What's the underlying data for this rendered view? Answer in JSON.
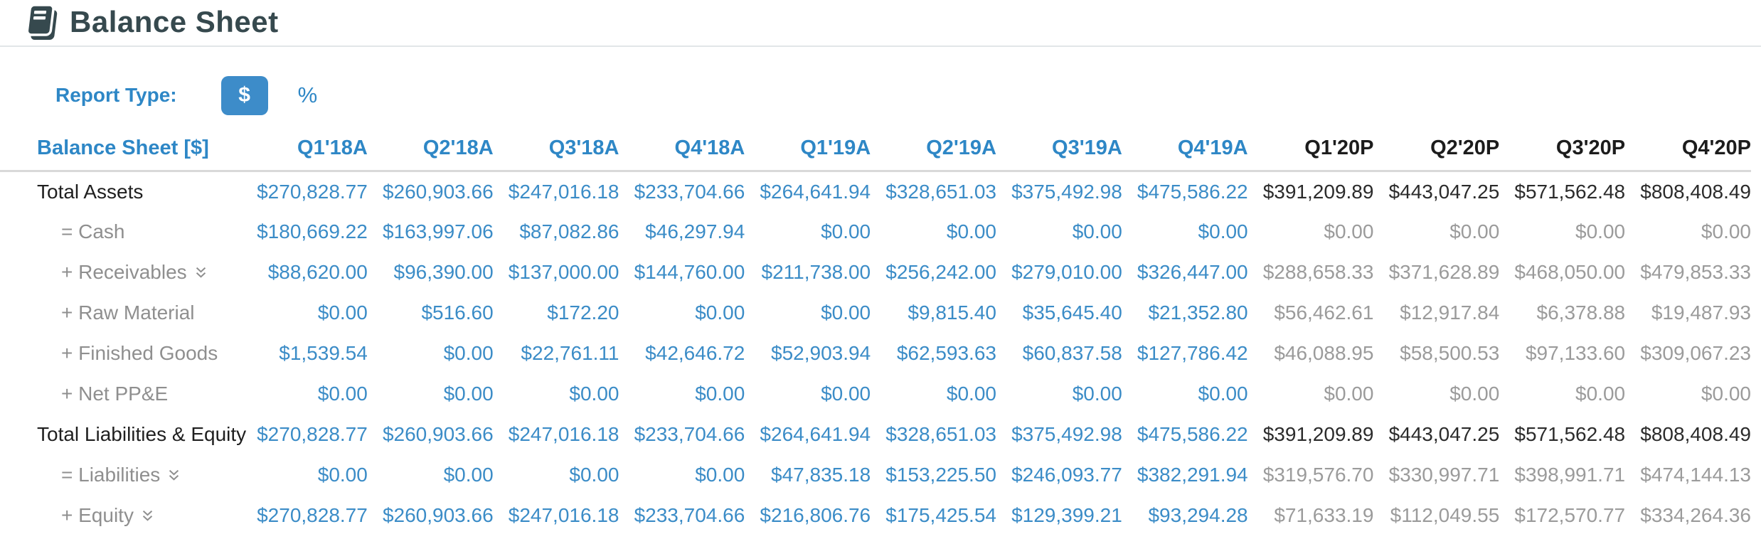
{
  "page": {
    "title": "Balance Sheet"
  },
  "controls": {
    "report_type_label": "Report Type:",
    "options": [
      {
        "label": "$",
        "selected": true
      },
      {
        "label": "%",
        "selected": false
      }
    ]
  },
  "colors": {
    "accent_blue": "#2e87c6",
    "button_blue": "#3d8cc9",
    "title_dark": "#36494e",
    "sub_label_gray": "#8f8f8f",
    "projected_sub_gray": "#9b9b9b",
    "projected_total_dark": "#2b2b2b",
    "divider_gray": "#d9d9d9"
  },
  "table": {
    "corner_header": "Balance Sheet [$]",
    "columns": [
      {
        "label": "Q1'18A",
        "period": "actual"
      },
      {
        "label": "Q2'18A",
        "period": "actual"
      },
      {
        "label": "Q3'18A",
        "period": "actual"
      },
      {
        "label": "Q4'18A",
        "period": "actual"
      },
      {
        "label": "Q1'19A",
        "period": "actual"
      },
      {
        "label": "Q2'19A",
        "period": "actual"
      },
      {
        "label": "Q3'19A",
        "period": "actual"
      },
      {
        "label": "Q4'19A",
        "period": "actual"
      },
      {
        "label": "Q1'20P",
        "period": "projected"
      },
      {
        "label": "Q2'20P",
        "period": "projected"
      },
      {
        "label": "Q3'20P",
        "period": "projected"
      },
      {
        "label": "Q4'20P",
        "period": "projected"
      }
    ],
    "rows": [
      {
        "label": "Total Assets",
        "kind": "total",
        "expandable": false,
        "values": [
          "$270,828.77",
          "$260,903.66",
          "$247,016.18",
          "$233,704.66",
          "$264,641.94",
          "$328,651.03",
          "$375,492.98",
          "$475,586.22",
          "$391,209.89",
          "$443,047.25",
          "$571,562.48",
          "$808,408.49"
        ]
      },
      {
        "label": "= Cash",
        "kind": "sub",
        "expandable": false,
        "values": [
          "$180,669.22",
          "$163,997.06",
          "$87,082.86",
          "$46,297.94",
          "$0.00",
          "$0.00",
          "$0.00",
          "$0.00",
          "$0.00",
          "$0.00",
          "$0.00",
          "$0.00"
        ]
      },
      {
        "label": "+ Receivables",
        "kind": "sub",
        "expandable": true,
        "values": [
          "$88,620.00",
          "$96,390.00",
          "$137,000.00",
          "$144,760.00",
          "$211,738.00",
          "$256,242.00",
          "$279,010.00",
          "$326,447.00",
          "$288,658.33",
          "$371,628.89",
          "$468,050.00",
          "$479,853.33"
        ]
      },
      {
        "label": "+ Raw Material",
        "kind": "sub",
        "expandable": false,
        "values": [
          "$0.00",
          "$516.60",
          "$172.20",
          "$0.00",
          "$0.00",
          "$9,815.40",
          "$35,645.40",
          "$21,352.80",
          "$56,462.61",
          "$12,917.84",
          "$6,378.88",
          "$19,487.93"
        ]
      },
      {
        "label": "+ Finished Goods",
        "kind": "sub",
        "expandable": false,
        "values": [
          "$1,539.54",
          "$0.00",
          "$22,761.11",
          "$42,646.72",
          "$52,903.94",
          "$62,593.63",
          "$60,837.58",
          "$127,786.42",
          "$46,088.95",
          "$58,500.53",
          "$97,133.60",
          "$309,067.23"
        ]
      },
      {
        "label": "+ Net PP&E",
        "kind": "sub",
        "expandable": false,
        "values": [
          "$0.00",
          "$0.00",
          "$0.00",
          "$0.00",
          "$0.00",
          "$0.00",
          "$0.00",
          "$0.00",
          "$0.00",
          "$0.00",
          "$0.00",
          "$0.00"
        ]
      },
      {
        "label": "Total Liabilities & Equity",
        "kind": "total",
        "expandable": false,
        "values": [
          "$270,828.77",
          "$260,903.66",
          "$247,016.18",
          "$233,704.66",
          "$264,641.94",
          "$328,651.03",
          "$375,492.98",
          "$475,586.22",
          "$391,209.89",
          "$443,047.25",
          "$571,562.48",
          "$808,408.49"
        ]
      },
      {
        "label": "= Liabilities",
        "kind": "sub",
        "expandable": true,
        "values": [
          "$0.00",
          "$0.00",
          "$0.00",
          "$0.00",
          "$47,835.18",
          "$153,225.50",
          "$246,093.77",
          "$382,291.94",
          "$319,576.70",
          "$330,997.71",
          "$398,991.71",
          "$474,144.13"
        ]
      },
      {
        "label": "+ Equity",
        "kind": "sub",
        "expandable": true,
        "values": [
          "$270,828.77",
          "$260,903.66",
          "$247,016.18",
          "$233,704.66",
          "$216,806.76",
          "$175,425.54",
          "$129,399.21",
          "$93,294.28",
          "$71,633.19",
          "$112,049.55",
          "$172,570.77",
          "$334,264.36"
        ]
      }
    ]
  }
}
